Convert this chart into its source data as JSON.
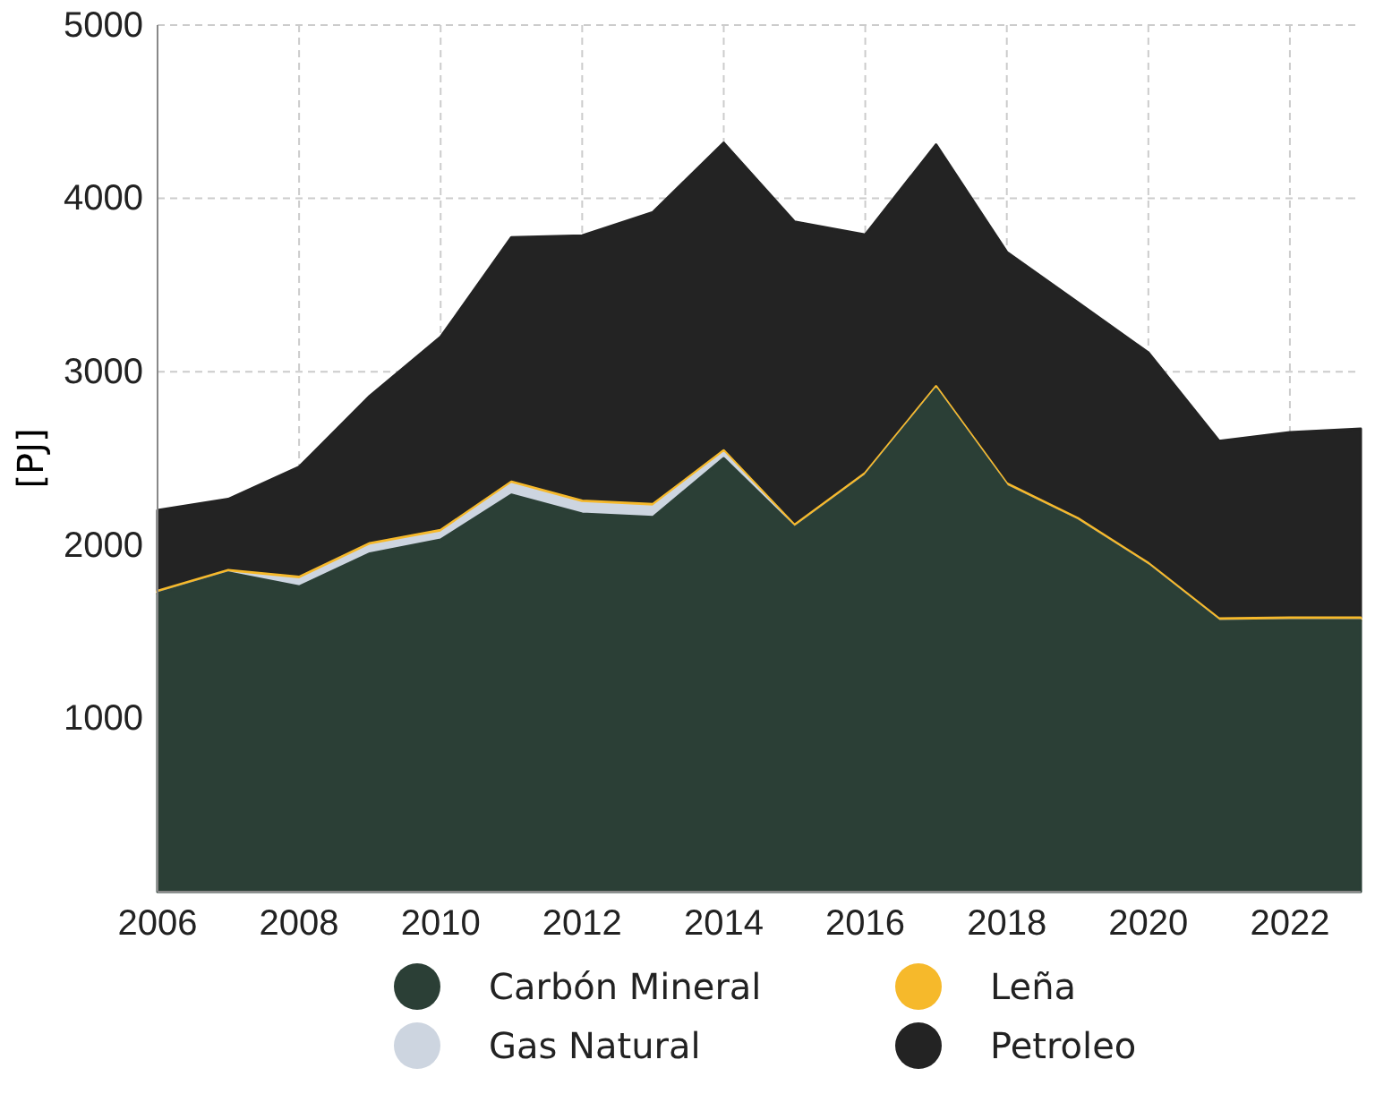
{
  "chart_data": {
    "type": "area",
    "stacked": true,
    "ylabel": "[PJ]",
    "x": [
      2006,
      2007,
      2008,
      2009,
      2010,
      2011,
      2012,
      2013,
      2014,
      2015,
      2016,
      2017,
      2018,
      2019,
      2020,
      2021,
      2022,
      2023
    ],
    "series": [
      {
        "name": "Carbón Mineral",
        "color": "#2b3f36",
        "values": [
          1720,
          1840,
          1760,
          1950,
          2030,
          2290,
          2180,
          2160,
          2500,
          2100,
          2400,
          2900,
          2340,
          2140,
          1880,
          1560,
          1565,
          1565
        ]
      },
      {
        "name": "Gas Natural",
        "color": "#cdd5e0",
        "values": [
          0,
          0,
          40,
          45,
          40,
          60,
          60,
          60,
          30,
          0,
          0,
          0,
          0,
          0,
          0,
          0,
          0,
          0
        ]
      },
      {
        "name": "Leña",
        "color": "#f6b92b",
        "values": [
          15,
          15,
          15,
          15,
          15,
          15,
          15,
          15,
          15,
          15,
          15,
          15,
          15,
          15,
          15,
          15,
          15,
          15
        ]
      },
      {
        "name": "Petroleo",
        "color": "#232323",
        "values": [
          465,
          410,
          635,
          850,
          1115,
          1410,
          1530,
          1685,
          1775,
          1750,
          1375,
          1395,
          1335,
          1245,
          1215,
          1025,
          1070,
          1090
        ]
      }
    ],
    "xlim": [
      2006,
      2023
    ],
    "xticks": [
      2006,
      2008,
      2010,
      2012,
      2014,
      2016,
      2018,
      2020,
      2022
    ],
    "ylim": [
      0,
      5000
    ],
    "yticks": [
      1000,
      2000,
      3000,
      4000,
      5000
    ],
    "grid": true,
    "legend": "bottom"
  }
}
